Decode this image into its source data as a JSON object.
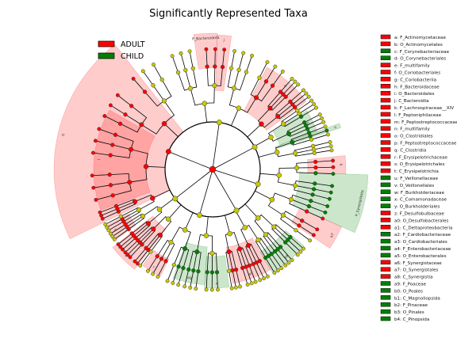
{
  "chart_data": {
    "type": "cladogram",
    "title": "Significantly Represented Taxa",
    "colors": {
      "adult": "#ff0000",
      "child": "#008000",
      "node": "#c8c800",
      "root": "#ff0000",
      "edge": "#000000"
    },
    "groups": [
      {
        "name": "ADULT",
        "color": "#ff0000"
      },
      {
        "name": "CHILD",
        "color": "#008000"
      }
    ],
    "highlighted_labels": [
      "P_Bacteroidota",
      "P_Synergistota"
    ],
    "key": [
      {
        "code": "a",
        "taxon": "F_Actinomycetaceae",
        "group": "ADULT"
      },
      {
        "code": "b",
        "taxon": "O_Actinomycetales",
        "group": "ADULT"
      },
      {
        "code": "c",
        "taxon": "F_Corynebacteriaceae",
        "group": "CHILD"
      },
      {
        "code": "d",
        "taxon": "O_Corynebacteriales",
        "group": "CHILD"
      },
      {
        "code": "e",
        "taxon": "F_multifamily",
        "group": "ADULT"
      },
      {
        "code": "f",
        "taxon": "O_Coriobacteriales",
        "group": "ADULT"
      },
      {
        "code": "g",
        "taxon": "C_Coriobacteriia",
        "group": "ADULT"
      },
      {
        "code": "h",
        "taxon": "F_Bacteroidaceae",
        "group": "ADULT"
      },
      {
        "code": "i",
        "taxon": "O_Bacteroidales",
        "group": "ADULT"
      },
      {
        "code": "j",
        "taxon": "C_Bacteroidia",
        "group": "ADULT"
      },
      {
        "code": "k",
        "taxon": "F_Lachnospiraceae__XIV",
        "group": "ADULT"
      },
      {
        "code": "l",
        "taxon": "F_Peptoniphilaceae",
        "group": "ADULT"
      },
      {
        "code": "m",
        "taxon": "F_Peptostreptococcaceae",
        "group": "ADULT"
      },
      {
        "code": "n",
        "taxon": "F_multifamily",
        "group": "ADULT"
      },
      {
        "code": "o",
        "taxon": "O_Clostridiales",
        "group": "ADULT"
      },
      {
        "code": "p",
        "taxon": "F_Peptostreptococcaceae",
        "group": "ADULT"
      },
      {
        "code": "q",
        "taxon": "C_Clostridia",
        "group": "ADULT"
      },
      {
        "code": "r",
        "taxon": "F_Erysipelotrichaceae",
        "group": "ADULT"
      },
      {
        "code": "s",
        "taxon": "O_Erysipelotrichales",
        "group": "ADULT"
      },
      {
        "code": "t",
        "taxon": "C_Erysipelotrichia",
        "group": "ADULT"
      },
      {
        "code": "u",
        "taxon": "F_Veillonellaceae",
        "group": "CHILD"
      },
      {
        "code": "v",
        "taxon": "O_Veillonellales",
        "group": "CHILD"
      },
      {
        "code": "w",
        "taxon": "F_Burkholderiaceae",
        "group": "CHILD"
      },
      {
        "code": "x",
        "taxon": "C_Comamonadaceae",
        "group": "CHILD"
      },
      {
        "code": "y",
        "taxon": "O_Burkholderiales",
        "group": "CHILD"
      },
      {
        "code": "z",
        "taxon": "F_Desulfobulbaceae",
        "group": "ADULT"
      },
      {
        "code": "a0",
        "taxon": "O_Desulfobacterales",
        "group": "ADULT"
      },
      {
        "code": "a1",
        "taxon": "C_Deltaproteobacteria",
        "group": "ADULT"
      },
      {
        "code": "a2",
        "taxon": "F_Cardiobacteriaceae",
        "group": "CHILD"
      },
      {
        "code": "a3",
        "taxon": "O_Cardiobacteriales",
        "group": "CHILD"
      },
      {
        "code": "a4",
        "taxon": "F_Enterobacteriaceae",
        "group": "CHILD"
      },
      {
        "code": "a5",
        "taxon": "O_Enterobacterales",
        "group": "CHILD"
      },
      {
        "code": "a6",
        "taxon": "F_Synergistaceae",
        "group": "ADULT"
      },
      {
        "code": "a7",
        "taxon": "O_Synergistales",
        "group": "ADULT"
      },
      {
        "code": "a8",
        "taxon": "C_Synergistia",
        "group": "ADULT"
      },
      {
        "code": "a9",
        "taxon": "F_Poaceae",
        "group": "CHILD"
      },
      {
        "code": "b0",
        "taxon": "O_Poales",
        "group": "CHILD"
      },
      {
        "code": "b1",
        "taxon": "C_Magnoliopsida",
        "group": "CHILD"
      },
      {
        "code": "b2",
        "taxon": "F_Pinaceae",
        "group": "CHILD"
      },
      {
        "code": "b3",
        "taxon": "O_Pinales",
        "group": "CHILD"
      },
      {
        "code": "b4",
        "taxon": "C_Pinopsida",
        "group": "CHILD"
      }
    ]
  }
}
